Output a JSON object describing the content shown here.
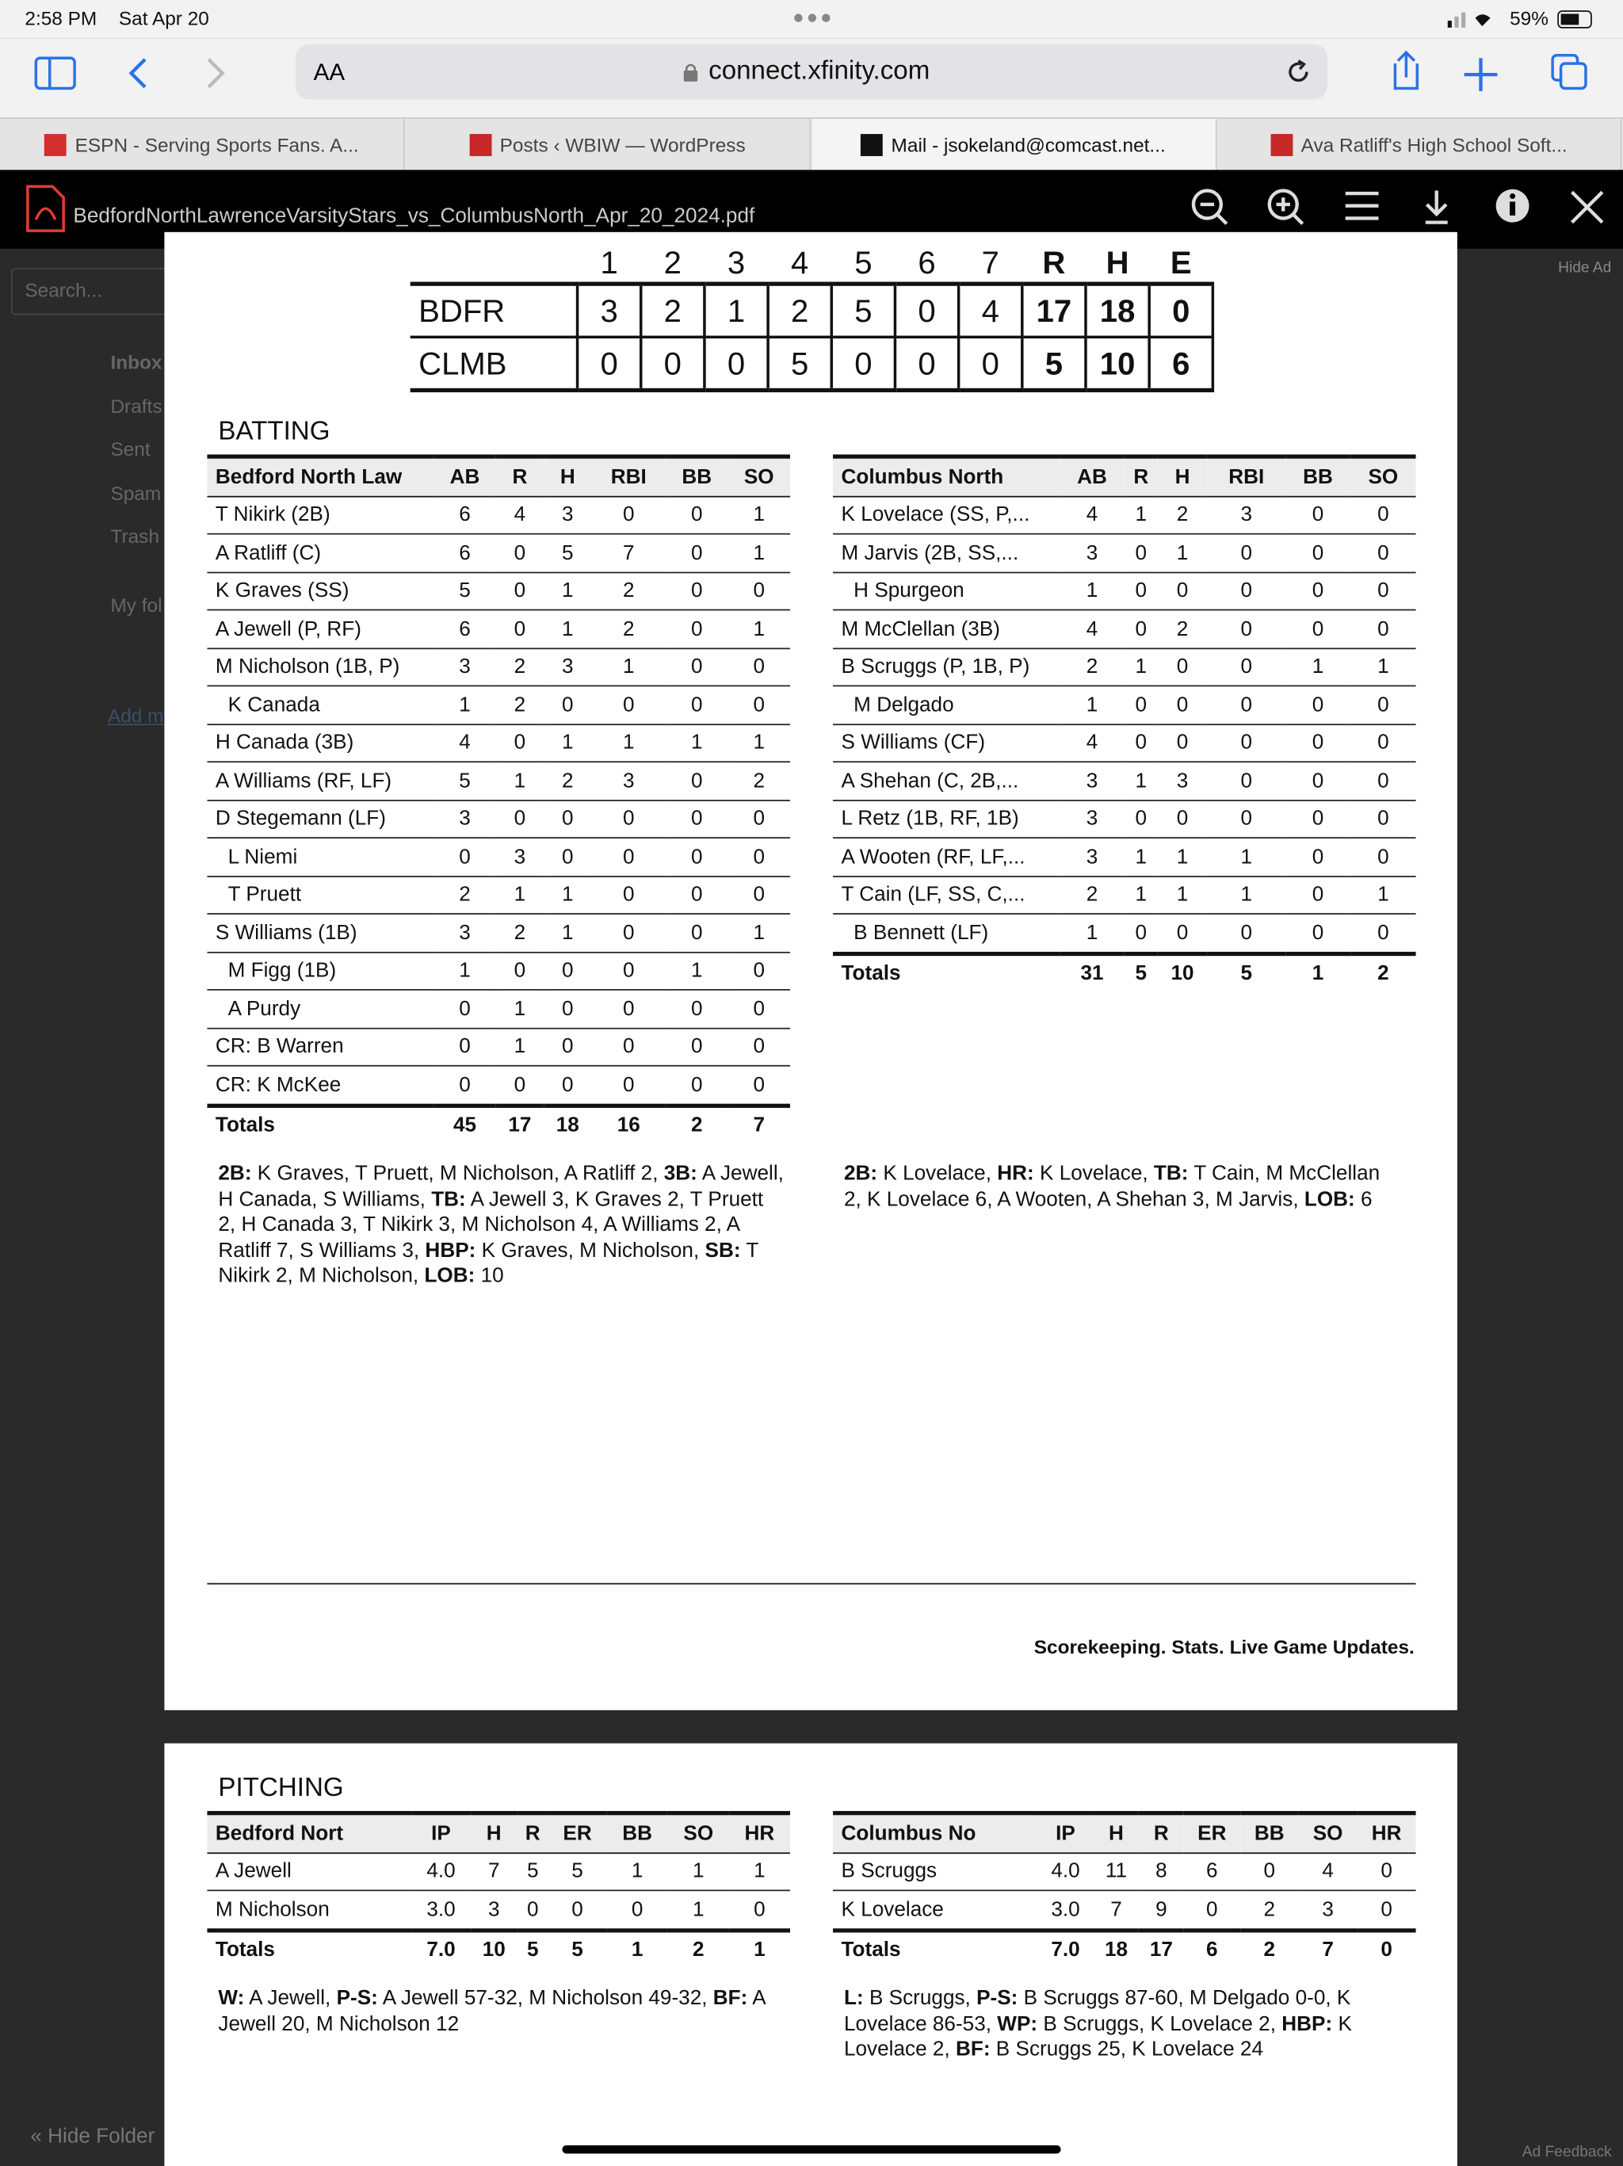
{
  "status_bar": {
    "time": "2:58 PM",
    "date": "Sat Apr 20",
    "battery": "59%"
  },
  "browser": {
    "text_size": "AA",
    "url": "connect.xfinity.com",
    "tabs": [
      "ESPN - Serving Sports Fans. A...",
      "Posts ‹ WBIW — WordPress",
      "Mail - jsokeland@comcast.net...",
      "Ava Ratliff's High School Soft..."
    ]
  },
  "pdf_viewer": {
    "filename": "BedfordNorthLawrenceVarsityStars_vs_ColumbusNorth_Apr_20_2024.pdf"
  },
  "mail_background": {
    "search": "Search...",
    "folders": [
      "Inbox",
      "Drafts",
      "Sent",
      "Spam",
      "Trash"
    ],
    "my_folders": "My fol",
    "add": "Add m",
    "hide_ad": "Hide Ad",
    "hide_folders": "« Hide Folder",
    "ad_feedback": "Ad Feedback"
  },
  "linescore": {
    "header": [
      "1",
      "2",
      "3",
      "4",
      "5",
      "6",
      "7",
      "R",
      "H",
      "E"
    ],
    "rows": [
      {
        "team": "BDFR",
        "cells": [
          "3",
          "2",
          "1",
          "2",
          "5",
          "0",
          "4",
          "17",
          "18",
          "0"
        ]
      },
      {
        "team": "CLMB",
        "cells": [
          "0",
          "0",
          "0",
          "5",
          "0",
          "0",
          "0",
          "5",
          "10",
          "6"
        ]
      }
    ]
  },
  "batting": {
    "title": "BATTING",
    "left": {
      "header": [
        "Bedford North Law",
        "AB",
        "R",
        "H",
        "RBI",
        "BB",
        "SO"
      ],
      "rows": [
        [
          "T Nikirk (2B)",
          "6",
          "4",
          "3",
          "0",
          "0",
          "1"
        ],
        [
          "A Ratliff (C)",
          "6",
          "0",
          "5",
          "7",
          "0",
          "1"
        ],
        [
          "K Graves (SS)",
          "5",
          "0",
          "1",
          "2",
          "0",
          "0"
        ],
        [
          "A Jewell (P, RF)",
          "6",
          "0",
          "1",
          "2",
          "0",
          "1"
        ],
        [
          "M Nicholson (1B, P)",
          "3",
          "2",
          "3",
          "1",
          "0",
          "0"
        ],
        [
          "K Canada",
          "1",
          "2",
          "0",
          "0",
          "0",
          "0"
        ],
        [
          "H Canada (3B)",
          "4",
          "0",
          "1",
          "1",
          "1",
          "1"
        ],
        [
          "A Williams (RF, LF)",
          "5",
          "1",
          "2",
          "3",
          "0",
          "2"
        ],
        [
          "D Stegemann (LF)",
          "3",
          "0",
          "0",
          "0",
          "0",
          "0"
        ],
        [
          "L Niemi",
          "0",
          "3",
          "0",
          "0",
          "0",
          "0"
        ],
        [
          "T Pruett",
          "2",
          "1",
          "1",
          "0",
          "0",
          "0"
        ],
        [
          "S Williams (1B)",
          "3",
          "2",
          "1",
          "0",
          "0",
          "1"
        ],
        [
          "M Figg (1B)",
          "1",
          "0",
          "0",
          "0",
          "1",
          "0"
        ],
        [
          "A Purdy",
          "0",
          "1",
          "0",
          "0",
          "0",
          "0"
        ],
        [
          "CR: B Warren",
          "0",
          "1",
          "0",
          "0",
          "0",
          "0"
        ],
        [
          "CR: K McKee",
          "0",
          "0",
          "0",
          "0",
          "0",
          "0"
        ]
      ],
      "totals": [
        "Totals",
        "45",
        "17",
        "18",
        "16",
        "2",
        "7"
      ],
      "notes": [
        {
          "b": "2B:",
          "t": " K Graves, T Pruett, M Nicholson, A Ratliff 2, "
        },
        {
          "b": "3B:",
          "t": " A Jewell, H Canada, S Williams, "
        },
        {
          "b": "TB:",
          "t": " A Jewell 3, K Graves 2, T Pruett 2, H Canada 3, T Nikirk 3, M Nicholson 4, A Williams 2, A Ratliff 7, S Williams 3, "
        },
        {
          "b": "HBP:",
          "t": " K Graves, M Nicholson, "
        },
        {
          "b": "SB:",
          "t": " T Nikirk 2, M Nicholson, "
        },
        {
          "b": "LOB:",
          "t": " 10"
        }
      ]
    },
    "right": {
      "header": [
        "Columbus North",
        "AB",
        "R",
        "H",
        "RBI",
        "BB",
        "SO"
      ],
      "rows": [
        [
          "K Lovelace (SS, P,...",
          "4",
          "1",
          "2",
          "3",
          "0",
          "0"
        ],
        [
          "M Jarvis (2B, SS,...",
          "3",
          "0",
          "1",
          "0",
          "0",
          "0"
        ],
        [
          "H Spurgeon",
          "1",
          "0",
          "0",
          "0",
          "0",
          "0"
        ],
        [
          "M McClellan (3B)",
          "4",
          "0",
          "2",
          "0",
          "0",
          "0"
        ],
        [
          "B Scruggs (P, 1B, P)",
          "2",
          "1",
          "0",
          "0",
          "1",
          "1"
        ],
        [
          "M Delgado",
          "1",
          "0",
          "0",
          "0",
          "0",
          "0"
        ],
        [
          "S Williams (CF)",
          "4",
          "0",
          "0",
          "0",
          "0",
          "0"
        ],
        [
          "A Shehan (C, 2B,...",
          "3",
          "1",
          "3",
          "0",
          "0",
          "0"
        ],
        [
          "L Retz (1B, RF, 1B)",
          "3",
          "0",
          "0",
          "0",
          "0",
          "0"
        ],
        [
          "A Wooten (RF, LF,...",
          "3",
          "1",
          "1",
          "1",
          "0",
          "0"
        ],
        [
          "T Cain (LF, SS, C,...",
          "2",
          "1",
          "1",
          "1",
          "0",
          "1"
        ],
        [
          "B Bennett (LF)",
          "1",
          "0",
          "0",
          "0",
          "0",
          "0"
        ]
      ],
      "totals": [
        "Totals",
        "31",
        "5",
        "10",
        "5",
        "1",
        "2"
      ],
      "notes": [
        {
          "b": "2B:",
          "t": " K Lovelace, "
        },
        {
          "b": "HR:",
          "t": " K Lovelace, "
        },
        {
          "b": "TB:",
          "t": " T Cain, M McClellan 2, K Lovelace 6, A Wooten, A Shehan 3, M Jarvis, "
        },
        {
          "b": "LOB:",
          "t": " 6"
        }
      ]
    }
  },
  "footer": "Scorekeeping. Stats. Live Game Updates.",
  "pitching": {
    "title": "PITCHING",
    "left": {
      "header": [
        "Bedford Nort",
        "IP",
        "H",
        "R",
        "ER",
        "BB",
        "SO",
        "HR"
      ],
      "rows": [
        [
          "A Jewell",
          "4.0",
          "7",
          "5",
          "5",
          "1",
          "1",
          "1"
        ],
        [
          "M Nicholson",
          "3.0",
          "3",
          "0",
          "0",
          "0",
          "1",
          "0"
        ]
      ],
      "totals": [
        "Totals",
        "7.0",
        "10",
        "5",
        "5",
        "1",
        "2",
        "1"
      ],
      "notes": [
        {
          "b": "W:",
          "t": " A Jewell, "
        },
        {
          "b": "P-S:",
          "t": " A Jewell 57-32, M Nicholson 49-32, "
        },
        {
          "b": "BF:",
          "t": " A Jewell 20, M Nicholson 12"
        }
      ]
    },
    "right": {
      "header": [
        "Columbus No",
        "IP",
        "H",
        "R",
        "ER",
        "BB",
        "SO",
        "HR"
      ],
      "rows": [
        [
          "B Scruggs",
          "4.0",
          "11",
          "8",
          "6",
          "0",
          "4",
          "0"
        ],
        [
          "K Lovelace",
          "3.0",
          "7",
          "9",
          "0",
          "2",
          "3",
          "0"
        ]
      ],
      "totals": [
        "Totals",
        "7.0",
        "18",
        "17",
        "6",
        "2",
        "7",
        "0"
      ],
      "notes": [
        {
          "b": "L:",
          "t": " B Scruggs, "
        },
        {
          "b": "P-S:",
          "t": " B Scruggs 87-60, M Delgado 0-0, K Lovelace 86-53, "
        },
        {
          "b": "WP:",
          "t": " B Scruggs, K Lovelace 2, "
        },
        {
          "b": "HBP:",
          "t": " K Lovelace 2, "
        },
        {
          "b": "BF:",
          "t": " B Scruggs 25, K Lovelace 24"
        }
      ]
    }
  }
}
